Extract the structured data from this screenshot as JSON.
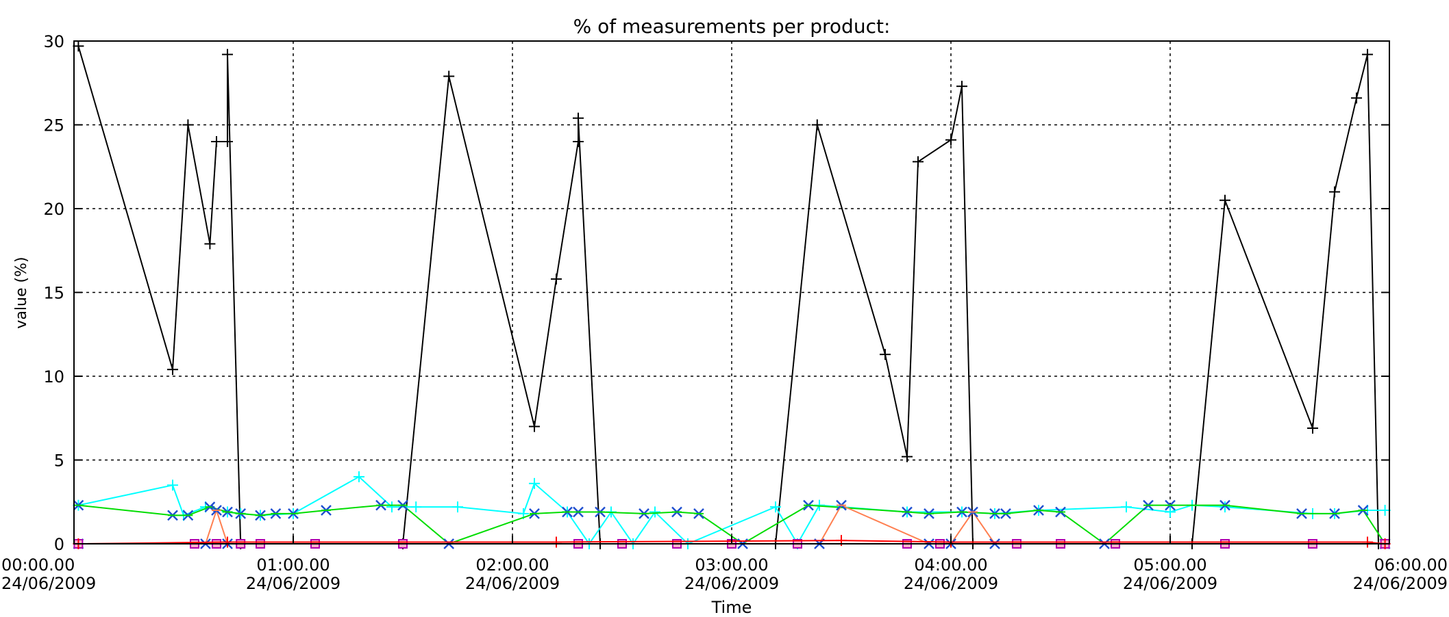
{
  "chart_data": {
    "type": "line",
    "title": "% of measurements per product:",
    "xlabel": "Time",
    "ylabel": "value (%)",
    "ylim": [
      0,
      30
    ],
    "xlim_hours": [
      0,
      6
    ],
    "grid": true,
    "x_ticks": [
      {
        "hour": 0,
        "time": "00:00.00",
        "date": "24/06/2009"
      },
      {
        "hour": 1,
        "time": "01:00.00",
        "date": "24/06/2009"
      },
      {
        "hour": 2,
        "time": "02:00.00",
        "date": "24/06/2009"
      },
      {
        "hour": 3,
        "time": "03:00.00",
        "date": "24/06/2009"
      },
      {
        "hour": 4,
        "time": "04:00.00",
        "date": "24/06/2009"
      },
      {
        "hour": 5,
        "time": "05:00.00",
        "date": "24/06/2009"
      },
      {
        "hour": 6,
        "time": "06:00.00",
        "date": "24/06/2009"
      }
    ],
    "y_ticks": [
      "0",
      "5",
      "10",
      "15",
      "20",
      "25",
      "30"
    ],
    "series": [
      {
        "color": "#000000",
        "marker": "plus",
        "points": [
          [
            0.02,
            29.7
          ],
          [
            0.45,
            10.4
          ],
          [
            0.52,
            25.0
          ],
          [
            0.62,
            17.9
          ],
          [
            0.65,
            24.0
          ],
          [
            0.7,
            24.0
          ],
          [
            0.7,
            29.2
          ],
          [
            0.76,
            0
          ],
          [
            1.5,
            0
          ],
          [
            1.71,
            27.9
          ],
          [
            2.1,
            7.0
          ],
          [
            2.2,
            15.8
          ],
          [
            2.3,
            24.0
          ],
          [
            2.3,
            25.4
          ],
          [
            2.4,
            0
          ],
          [
            3.2,
            0
          ],
          [
            3.39,
            25.0
          ],
          [
            3.7,
            11.3
          ],
          [
            3.8,
            5.2
          ],
          [
            3.85,
            22.8
          ],
          [
            4.0,
            24.1
          ],
          [
            4.05,
            27.3
          ],
          [
            4.1,
            0
          ],
          [
            5.1,
            0
          ],
          [
            5.25,
            20.5
          ],
          [
            5.65,
            6.9
          ],
          [
            5.75,
            21.0
          ],
          [
            5.85,
            26.6
          ],
          [
            5.9,
            29.2
          ],
          [
            5.95,
            0
          ]
        ]
      },
      {
        "color": "#00ffff",
        "marker": "plus",
        "points": [
          [
            0.02,
            2.3
          ],
          [
            0.45,
            3.5
          ],
          [
            0.5,
            1.7
          ],
          [
            0.6,
            2.2
          ],
          [
            0.7,
            1.9
          ],
          [
            0.76,
            1.8
          ],
          [
            0.85,
            1.7
          ],
          [
            1.0,
            1.8
          ],
          [
            1.3,
            4.0
          ],
          [
            1.45,
            2.2
          ],
          [
            1.56,
            2.2
          ],
          [
            1.75,
            2.2
          ],
          [
            2.05,
            1.8
          ],
          [
            2.1,
            3.6
          ],
          [
            2.25,
            1.9
          ],
          [
            2.35,
            0
          ],
          [
            2.45,
            1.9
          ],
          [
            2.55,
            0
          ],
          [
            2.65,
            1.9
          ],
          [
            2.8,
            0
          ],
          [
            3.2,
            2.2
          ],
          [
            3.3,
            0
          ],
          [
            3.4,
            2.3
          ],
          [
            3.8,
            1.9
          ],
          [
            4.05,
            1.9
          ],
          [
            4.2,
            1.8
          ],
          [
            4.4,
            2.0
          ],
          [
            4.8,
            2.2
          ],
          [
            5.0,
            1.9
          ],
          [
            5.1,
            2.3
          ],
          [
            5.25,
            2.2
          ],
          [
            5.65,
            1.8
          ],
          [
            5.75,
            1.8
          ],
          [
            5.9,
            2.0
          ],
          [
            5.98,
            2.0
          ]
        ]
      },
      {
        "color": "#00dd00",
        "marker": "star",
        "points": [
          [
            0.02,
            2.3
          ],
          [
            0.45,
            1.7
          ],
          [
            0.52,
            1.7
          ],
          [
            0.62,
            2.2
          ],
          [
            0.7,
            1.9
          ],
          [
            0.76,
            1.8
          ],
          [
            0.85,
            1.7
          ],
          [
            0.92,
            1.8
          ],
          [
            1.0,
            1.8
          ],
          [
            1.15,
            2.0
          ],
          [
            1.4,
            2.3
          ],
          [
            1.5,
            2.3
          ],
          [
            1.71,
            0
          ],
          [
            2.1,
            1.8
          ],
          [
            2.25,
            1.9
          ],
          [
            2.3,
            1.9
          ],
          [
            2.4,
            1.9
          ],
          [
            2.6,
            1.8
          ],
          [
            2.75,
            1.9
          ],
          [
            2.85,
            1.8
          ],
          [
            3.05,
            0
          ],
          [
            3.35,
            2.3
          ],
          [
            3.8,
            1.9
          ],
          [
            3.9,
            1.8
          ],
          [
            4.05,
            1.9
          ],
          [
            4.2,
            1.8
          ],
          [
            4.25,
            1.8
          ],
          [
            4.4,
            2.0
          ],
          [
            4.5,
            1.9
          ],
          [
            4.7,
            0
          ],
          [
            4.9,
            2.3
          ],
          [
            5.0,
            2.3
          ],
          [
            5.25,
            2.3
          ],
          [
            5.6,
            1.8
          ],
          [
            5.75,
            1.8
          ],
          [
            5.88,
            2.0
          ],
          [
            5.98,
            0
          ]
        ]
      },
      {
        "color": "#ff7f50",
        "marker": "star",
        "points": [
          [
            0.02,
            0
          ],
          [
            0.6,
            0
          ],
          [
            0.65,
            2.0
          ],
          [
            0.7,
            0
          ],
          [
            3.4,
            0
          ],
          [
            3.5,
            2.3
          ],
          [
            3.9,
            0
          ],
          [
            4.0,
            0
          ],
          [
            4.1,
            1.9
          ],
          [
            4.2,
            0
          ],
          [
            5.98,
            0
          ]
        ]
      },
      {
        "color": "#b000b0",
        "marker": "square",
        "points": [
          [
            0.02,
            0
          ],
          [
            0.55,
            0
          ],
          [
            0.65,
            0
          ],
          [
            0.76,
            0
          ],
          [
            0.85,
            0
          ],
          [
            1.1,
            0
          ],
          [
            1.5,
            0
          ],
          [
            2.3,
            0
          ],
          [
            2.5,
            0
          ],
          [
            2.75,
            0
          ],
          [
            3.0,
            0
          ],
          [
            3.3,
            0
          ],
          [
            3.8,
            0
          ],
          [
            3.95,
            0
          ],
          [
            4.3,
            0
          ],
          [
            4.5,
            0
          ],
          [
            4.75,
            0
          ],
          [
            5.25,
            0
          ],
          [
            5.65,
            0
          ],
          [
            5.98,
            0
          ]
        ]
      },
      {
        "color": "#ff0000",
        "marker": "plus",
        "points": [
          [
            0.02,
            0
          ],
          [
            0.7,
            0.1
          ],
          [
            2.2,
            0.1
          ],
          [
            3.5,
            0.2
          ],
          [
            4.0,
            0.1
          ],
          [
            5.9,
            0.1
          ],
          [
            5.98,
            0
          ]
        ]
      }
    ]
  }
}
